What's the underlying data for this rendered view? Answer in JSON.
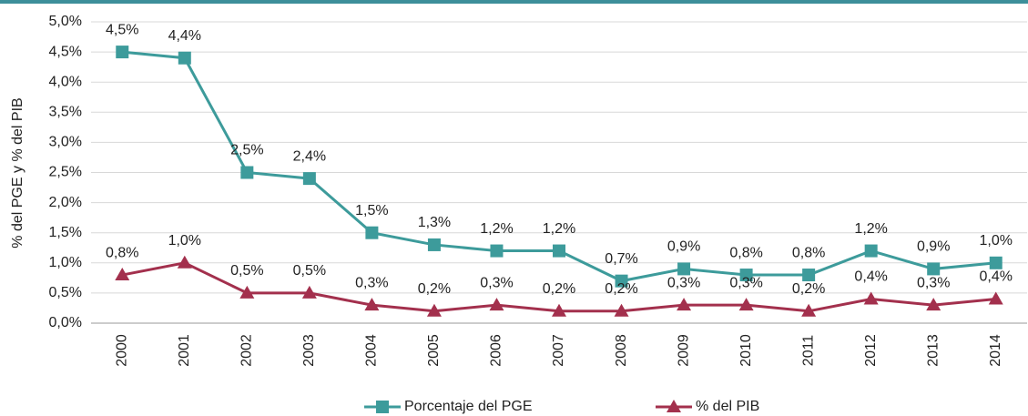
{
  "chart_data": {
    "type": "line",
    "y_label": "% del PGE y % del PIB",
    "categories": [
      "2000",
      "2001",
      "2002",
      "2003",
      "2004",
      "2005",
      "2006",
      "2007",
      "2008",
      "2009",
      "2010",
      "2011",
      "2012",
      "2013",
      "2014"
    ],
    "series": [
      {
        "name": "Porcentaje del PGE",
        "color": "#3d9b9b",
        "marker": "square",
        "values": [
          4.5,
          4.4,
          2.5,
          2.4,
          1.5,
          1.3,
          1.2,
          1.2,
          0.7,
          0.9,
          0.8,
          0.8,
          1.2,
          0.9,
          1.0
        ],
        "value_labels": [
          "4,5%",
          "4,4%",
          "2,5%",
          "2,4%",
          "1,5%",
          "1,3%",
          "1,2%",
          "1,2%",
          "0,7%",
          "0,9%",
          "0,8%",
          "0,8%",
          "1,2%",
          "0,9%",
          "1,0%"
        ]
      },
      {
        "name": "% del PIB",
        "color": "#a3304d",
        "marker": "triangle",
        "values": [
          0.8,
          1.0,
          0.5,
          0.5,
          0.3,
          0.2,
          0.3,
          0.2,
          0.2,
          0.3,
          0.3,
          0.2,
          0.4,
          0.3,
          0.4
        ],
        "value_labels": [
          "0,8%",
          "1,0%",
          "0,5%",
          "0,5%",
          "0,3%",
          "0,2%",
          "0,3%",
          "0,2%",
          "0,2%",
          "0,3%",
          "0,3%",
          "0,2%",
          "0,4%",
          "0,3%",
          "0,4%"
        ]
      }
    ],
    "ylim": [
      0,
      5
    ],
    "yticks": [
      {
        "value": 0,
        "label": "0,0%"
      },
      {
        "value": 0.5,
        "label": "0,5%"
      },
      {
        "value": 1,
        "label": "1,0%"
      },
      {
        "value": 1.5,
        "label": "1,5%"
      },
      {
        "value": 2,
        "label": "2,0%"
      },
      {
        "value": 2.5,
        "label": "2,5%"
      },
      {
        "value": 3,
        "label": "3,0%"
      },
      {
        "value": 3.5,
        "label": "3,5%"
      },
      {
        "value": 4,
        "label": "4,0%"
      },
      {
        "value": 4.5,
        "label": "4,5%"
      },
      {
        "value": 5,
        "label": "5,0%"
      }
    ],
    "grid": true,
    "legend": "bottom"
  }
}
